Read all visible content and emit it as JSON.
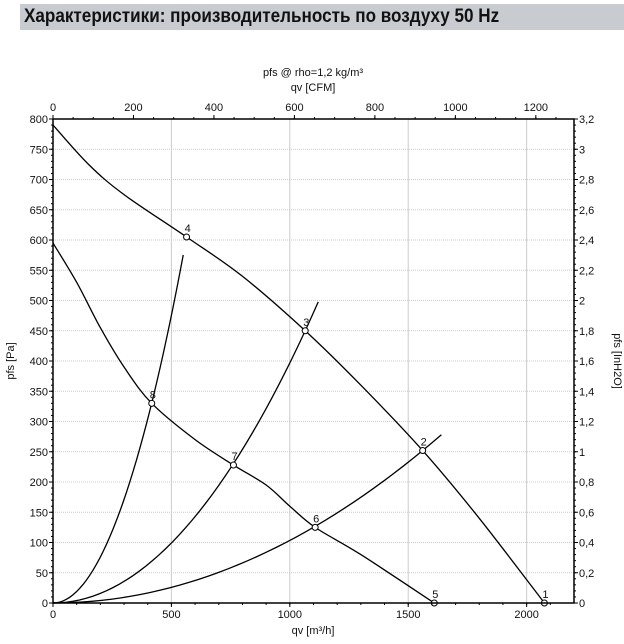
{
  "header": {
    "title": "Характеристики: производительность по воздуху 50 Hz"
  },
  "chart_data": {
    "type": "line",
    "title": "pfs @ rho=1,2 kg/m³",
    "xlabel": "qv [m³/h]",
    "x2label": "qv [CFM]",
    "ylabel": "pfs [Pa]",
    "y2label": "pfs [InH2O]",
    "xlim": [
      0,
      2200
    ],
    "ylim": [
      0,
      800
    ],
    "xticks": [
      0,
      500,
      1000,
      1500,
      2000
    ],
    "yticks": [
      0,
      50,
      100,
      150,
      200,
      250,
      300,
      350,
      400,
      450,
      500,
      550,
      600,
      650,
      700,
      750,
      800
    ],
    "x2ticks": [
      0,
      200,
      400,
      600,
      800,
      1000,
      1200
    ],
    "y2ticks": [
      "0",
      "0,2",
      "0,4",
      "0,6",
      "0,8",
      "1",
      "1,2",
      "1,4",
      "1,6",
      "1,8",
      "2",
      "2,2",
      "2,4",
      "2,6",
      "2,8",
      "3",
      "3,2"
    ],
    "grid": true,
    "series": [
      {
        "name": "fan curve high",
        "x": [
          0,
          150,
          300,
          564,
          800,
          1065,
          1300,
          1561,
          1800,
          2075
        ],
        "y": [
          790,
          725,
          675,
          605,
          540,
          450,
          360,
          252,
          140,
          0
        ]
      },
      {
        "name": "fan curve low",
        "x": [
          0,
          100,
          200,
          300,
          417,
          600,
          762,
          900,
          1000,
          1107,
          1300,
          1610
        ],
        "y": [
          595,
          530,
          455,
          390,
          330,
          270,
          228,
          195,
          160,
          125,
          80,
          0
        ]
      },
      {
        "name": "system curve 8-4",
        "through": [
          564,
          605
        ]
      },
      {
        "name": "system curve 7-3",
        "through": [
          1065,
          450
        ],
        "extend_to": 1120
      },
      {
        "name": "system curve 6-2",
        "through": [
          1561,
          252
        ],
        "extend_to": 1640
      }
    ],
    "points": [
      {
        "label": "1",
        "x": 2075,
        "y": 0
      },
      {
        "label": "2",
        "x": 1561,
        "y": 252
      },
      {
        "label": "3",
        "x": 1065,
        "y": 450
      },
      {
        "label": "4",
        "x": 564,
        "y": 605
      },
      {
        "label": "5",
        "x": 1610,
        "y": 0
      },
      {
        "label": "6",
        "x": 1107,
        "y": 125
      },
      {
        "label": "7",
        "x": 762,
        "y": 228
      },
      {
        "label": "8",
        "x": 417,
        "y": 330
      }
    ]
  }
}
